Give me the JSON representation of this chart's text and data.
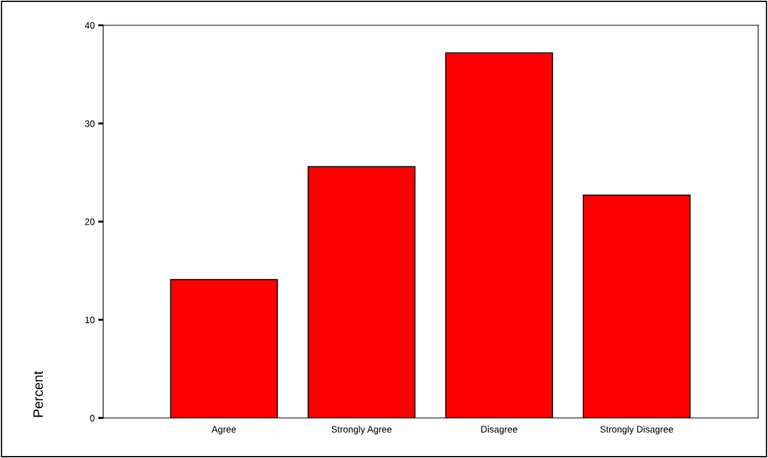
{
  "chart_data": {
    "type": "bar",
    "ylabel": "Percent",
    "categories": [
      "Agree",
      "Strongly Agree",
      "Disagree",
      "Strongly Disagree"
    ],
    "values": [
      14.1,
      25.6,
      37.2,
      22.7
    ],
    "color": "#ff0000",
    "ylim": [
      0,
      40
    ],
    "yticks": [
      0,
      10,
      20,
      30,
      40
    ],
    "grid": false,
    "legend": false
  }
}
